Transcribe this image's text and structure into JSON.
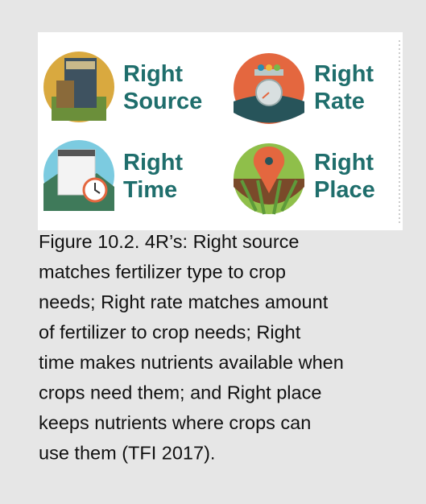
{
  "figure": {
    "panels": [
      {
        "line1": "Right",
        "line2": "Source"
      },
      {
        "line1": "Right",
        "line2": "Rate"
      },
      {
        "line1": "Right",
        "line2": "Time"
      },
      {
        "line1": "Right",
        "line2": "Place"
      }
    ],
    "caption": [
      "Figure 10.2. 4R’s: Right source",
      "matches fertilizer type to crop",
      "needs; Right rate matches amount",
      "of fertilizer to crop needs; Right",
      "time makes nutrients available when",
      "crops need them; and Right place",
      "keeps nutrients where crops can",
      "use them (TFI 2017)."
    ]
  }
}
